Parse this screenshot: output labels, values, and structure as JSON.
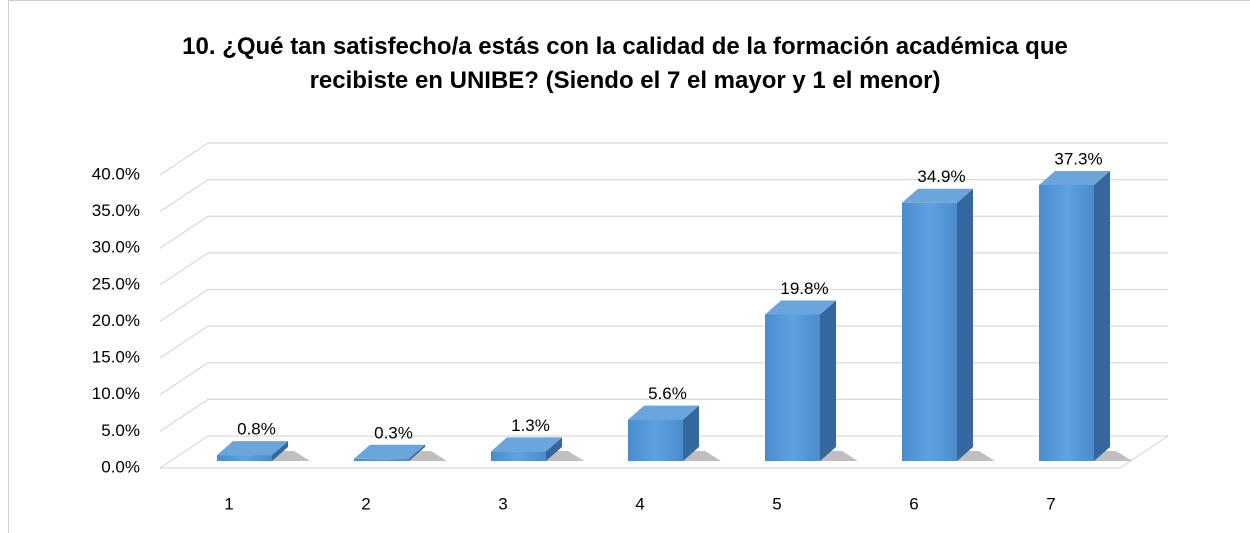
{
  "chart_data": {
    "type": "bar3d",
    "title": "10. ¿Qué tan satisfecho/a estás con la calidad de la formación académica que recibiste en UNIBE? (Siendo el 7 el mayor y 1 el menor)",
    "categories": [
      "1",
      "2",
      "3",
      "4",
      "5",
      "6",
      "7"
    ],
    "values": [
      0.8,
      0.3,
      1.3,
      5.6,
      19.8,
      34.9,
      37.3
    ],
    "value_labels": [
      "0.8%",
      "0.3%",
      "1.3%",
      "5.6%",
      "19.8%",
      "34.9%",
      "37.3%"
    ],
    "color": "#5b9bd5",
    "ylim": [
      0,
      40
    ],
    "yticks": [
      {
        "value": 0,
        "label": "0.0%"
      },
      {
        "value": 5,
        "label": "5.0%"
      },
      {
        "value": 10,
        "label": "10.0%"
      },
      {
        "value": 15,
        "label": "15.0%"
      },
      {
        "value": 20,
        "label": "20.0%"
      },
      {
        "value": 25,
        "label": "25.0%"
      },
      {
        "value": 30,
        "label": "30.0%"
      },
      {
        "value": 35,
        "label": "35.0%"
      },
      {
        "value": 40,
        "label": "40.0%"
      }
    ],
    "grid": true
  }
}
